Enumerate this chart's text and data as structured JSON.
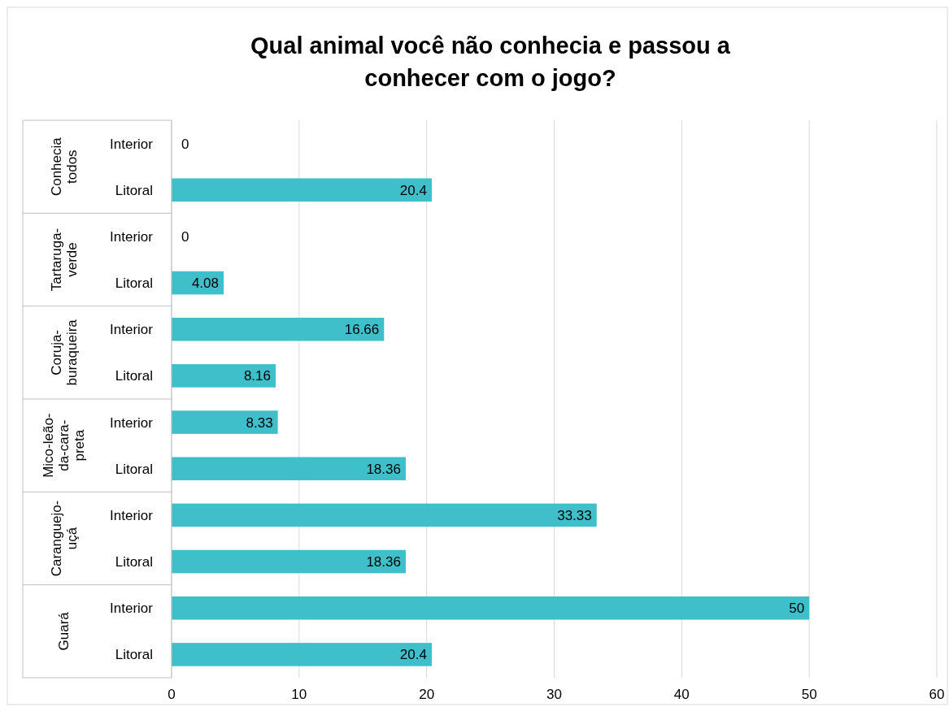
{
  "chart_data": {
    "type": "bar",
    "orientation": "horizontal",
    "title": "Qual animal você não conhecia e passou a conhecer com o jogo?",
    "categories": [
      "Interior",
      "Litoral",
      "Interior",
      "Litoral",
      "Interior",
      "Litoral",
      "Interior",
      "Litoral",
      "Interior",
      "Litoral",
      "Interior",
      "Litoral"
    ],
    "annotations": [
      "Conhecia todos",
      "Tartaruga-verde",
      "Coruja-buraqueira",
      "Mico-leão-da-cara-preta",
      "Caranguejo-uçá",
      "Guará"
    ],
    "values": [
      0,
      20.4,
      0,
      4.08,
      16.66,
      8.16,
      8.33,
      18.36,
      33.33,
      18.36,
      50,
      20.4
    ],
    "color": "#3fbfc9",
    "data_labels": true,
    "grid": "x",
    "xlim": [
      0,
      60
    ],
    "xticks": [
      0,
      10,
      20,
      30,
      40,
      50,
      60
    ]
  }
}
